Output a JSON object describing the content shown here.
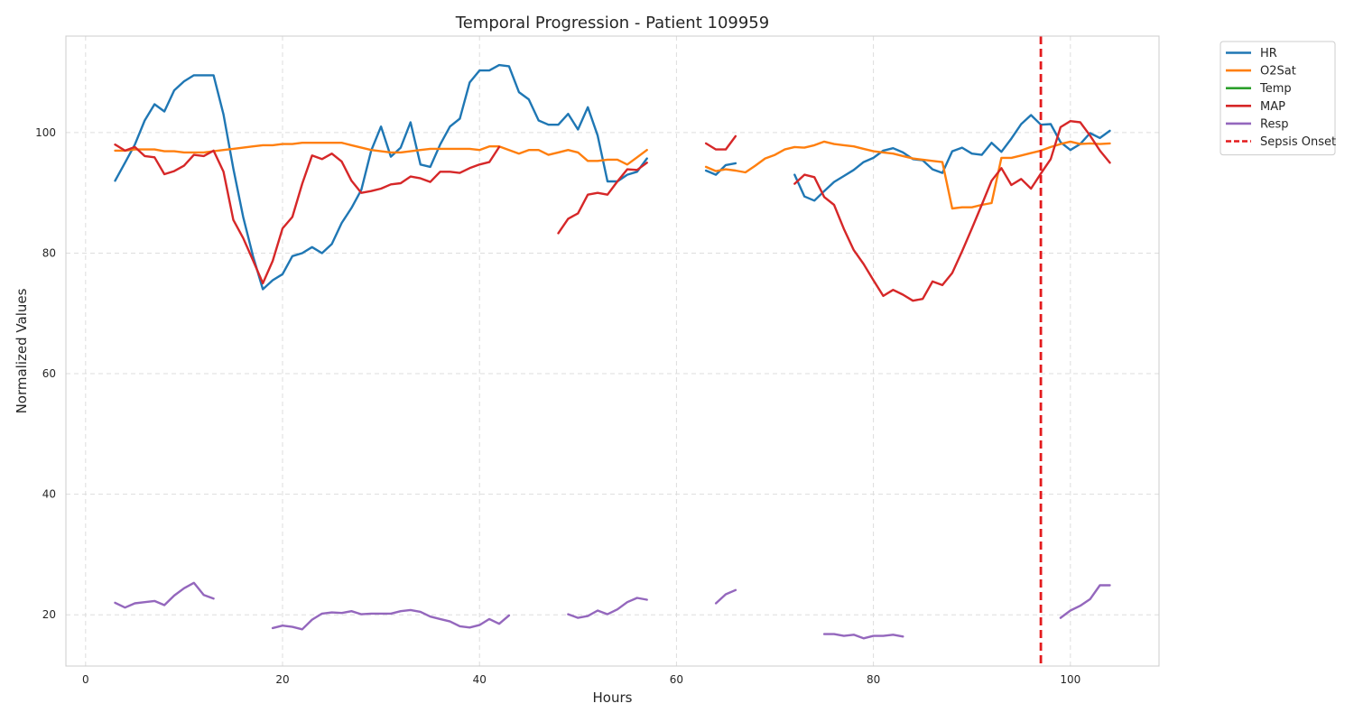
{
  "chart_data": {
    "type": "line",
    "title": "Temporal Progression - Patient 109959",
    "xlabel": "Hours",
    "ylabel": "Normalized Values",
    "xlim": [
      -2,
      109
    ],
    "ylim": [
      11.5,
      116
    ],
    "xticks": [
      0,
      20,
      40,
      60,
      80,
      100
    ],
    "yticks": [
      20,
      40,
      60,
      80,
      100
    ],
    "grid": true,
    "legend_position": "outside-top-right",
    "series": [
      {
        "name": "HR",
        "color": "#1f77b4",
        "x": [
          3,
          4,
          5,
          6,
          7,
          8,
          9,
          10,
          11,
          12,
          13,
          14,
          15,
          16,
          17,
          18,
          19,
          20,
          21,
          22,
          23,
          24,
          25,
          26,
          27,
          28,
          29,
          30,
          31,
          32,
          33,
          34,
          35,
          36,
          37,
          38,
          39,
          40,
          41,
          42,
          43,
          44,
          45,
          46,
          47,
          48,
          49,
          50,
          51,
          52,
          53,
          54,
          55,
          56,
          57,
          58,
          59,
          60,
          61,
          62,
          63,
          64,
          65,
          66,
          67,
          68,
          69,
          70,
          71,
          72,
          73,
          74,
          75,
          76,
          77,
          78,
          79,
          80,
          81,
          82,
          83,
          84,
          85,
          86,
          87,
          88,
          89,
          90,
          91,
          92,
          93,
          94,
          95,
          96,
          97,
          98,
          99,
          100,
          101,
          102,
          103,
          104
        ],
        "y": [
          92,
          95,
          98,
          102,
          104.7,
          103.5,
          107,
          108.5,
          109.5,
          109.5,
          109.5,
          103,
          94,
          86,
          79.5,
          74,
          75.5,
          76.5,
          79.5,
          80,
          81,
          80,
          81.5,
          85,
          87.5,
          90.5,
          97,
          101,
          96,
          97.5,
          101.7,
          94.7,
          94.3,
          98,
          101,
          102.3,
          108.3,
          110.3,
          110.3,
          111.2,
          111,
          106.7,
          105.5,
          102,
          101.3,
          101.3,
          103.1,
          100.5,
          104.2,
          99.5,
          91.9,
          91.9,
          93,
          93.5,
          95.7,
          null,
          null,
          null,
          null,
          null,
          93.7,
          93,
          94.6,
          94.9,
          null,
          null,
          null,
          null,
          null,
          93,
          89.4,
          88.7,
          90.3,
          91.8,
          92.8,
          93.8,
          95.1,
          95.8,
          97,
          97.4,
          96.7,
          95.6,
          95.4,
          93.9,
          93.3,
          96.9,
          97.5,
          96.5,
          96.3,
          98.3,
          96.8,
          99,
          101.4,
          102.9,
          101.3,
          101.4,
          98.4,
          97.1,
          98.1,
          99.9,
          99.1,
          100.3
        ]
      },
      {
        "name": "O2Sat",
        "color": "#ff7f0e",
        "x": [
          3,
          4,
          5,
          6,
          7,
          8,
          9,
          10,
          11,
          12,
          13,
          14,
          15,
          16,
          17,
          18,
          19,
          20,
          21,
          22,
          23,
          24,
          25,
          26,
          27,
          28,
          29,
          30,
          31,
          32,
          33,
          34,
          35,
          36,
          37,
          38,
          39,
          40,
          41,
          42,
          43,
          44,
          45,
          46,
          47,
          48,
          49,
          50,
          51,
          52,
          53,
          54,
          55,
          56,
          57,
          58,
          59,
          60,
          61,
          62,
          63,
          64,
          65,
          66,
          67,
          68,
          69,
          70,
          71,
          72,
          73,
          74,
          75,
          76,
          77,
          78,
          79,
          80,
          81,
          82,
          83,
          84,
          85,
          86,
          87,
          88,
          89,
          90,
          91,
          92,
          93,
          94,
          95,
          96,
          97,
          98,
          99,
          100,
          101,
          102,
          103,
          104
        ],
        "y": [
          97,
          97,
          97.2,
          97.2,
          97.2,
          96.9,
          96.9,
          96.7,
          96.7,
          96.7,
          96.9,
          97.1,
          97.3,
          97.5,
          97.7,
          97.9,
          97.9,
          98.1,
          98.1,
          98.3,
          98.3,
          98.3,
          98.3,
          98.3,
          97.9,
          97.5,
          97.1,
          96.9,
          96.7,
          96.7,
          96.9,
          97.1,
          97.3,
          97.3,
          97.3,
          97.3,
          97.3,
          97.1,
          97.7,
          97.7,
          97.1,
          96.5,
          97.1,
          97.1,
          96.3,
          96.7,
          97.1,
          96.7,
          95.3,
          95.3,
          95.5,
          95.5,
          94.7,
          95.9,
          97.1,
          null,
          null,
          null,
          null,
          null,
          94.3,
          93.6,
          93.9,
          93.7,
          93.4,
          94.5,
          95.7,
          96.3,
          97.2,
          97.6,
          97.5,
          97.9,
          98.5,
          98.1,
          97.9,
          97.7,
          97.3,
          96.9,
          96.7,
          96.5,
          96.1,
          95.7,
          95.5,
          95.3,
          95.1,
          87.4,
          87.6,
          87.6,
          88,
          88.3,
          95.8,
          95.8,
          96.2,
          96.6,
          97,
          97.6,
          98.1,
          98.5,
          98.1,
          98.2,
          98.1,
          98.2
        ]
      },
      {
        "name": "Temp",
        "color": "#2ca02c",
        "x": [],
        "y": []
      },
      {
        "name": "MAP",
        "color": "#d62728",
        "x": [
          3,
          4,
          5,
          6,
          7,
          8,
          9,
          10,
          11,
          12,
          13,
          14,
          15,
          16,
          17,
          18,
          19,
          20,
          21,
          22,
          23,
          24,
          25,
          26,
          27,
          28,
          29,
          30,
          31,
          32,
          33,
          34,
          35,
          36,
          37,
          38,
          39,
          40,
          41,
          42,
          43,
          44,
          45,
          46,
          47,
          48,
          49,
          50,
          51,
          52,
          53,
          54,
          55,
          56,
          57,
          58,
          59,
          60,
          61,
          62,
          63,
          64,
          65,
          66,
          67,
          68,
          69,
          70,
          71,
          72,
          73,
          74,
          75,
          76,
          77,
          78,
          79,
          80,
          81,
          82,
          83,
          84,
          85,
          86,
          87,
          88,
          89,
          90,
          91,
          92,
          93,
          94,
          95,
          96,
          97,
          98,
          99,
          100,
          101,
          102,
          103,
          104
        ],
        "y": [
          98,
          97,
          97.6,
          96.1,
          95.9,
          93.1,
          93.6,
          94.5,
          96.3,
          96.1,
          97,
          93.5,
          85.5,
          82.5,
          78.8,
          75,
          78.7,
          84.1,
          86,
          91.5,
          96.2,
          95.6,
          96.5,
          95.2,
          92,
          90,
          90.3,
          90.7,
          91.4,
          91.6,
          92.7,
          92.4,
          91.8,
          93.5,
          93.5,
          93.3,
          94.1,
          94.7,
          95.1,
          97.6,
          null,
          null,
          null,
          null,
          null,
          83.3,
          85.7,
          86.6,
          89.7,
          90,
          89.7,
          91.9,
          93.9,
          93.8,
          95,
          null,
          null,
          null,
          null,
          null,
          98.2,
          97.2,
          97.2,
          99.4,
          null,
          null,
          null,
          null,
          null,
          91.5,
          93,
          92.6,
          89.3,
          88,
          84,
          80.5,
          78.2,
          75.5,
          72.9,
          73.9,
          73.1,
          72.1,
          72.4,
          75.3,
          74.7,
          76.7,
          80.3,
          84.1,
          88,
          92,
          94.1,
          91.3,
          92.3,
          90.7,
          93.2,
          95.6,
          100.9,
          101.9,
          101.7,
          99.5,
          97,
          95
        ]
      },
      {
        "name": "Resp",
        "color": "#9467bd",
        "x": [
          3,
          4,
          5,
          6,
          7,
          8,
          9,
          10,
          11,
          12,
          13,
          14,
          15,
          16,
          17,
          18,
          19,
          20,
          21,
          22,
          23,
          24,
          25,
          26,
          27,
          28,
          29,
          30,
          31,
          32,
          33,
          34,
          35,
          36,
          37,
          38,
          39,
          40,
          41,
          42,
          43,
          44,
          45,
          46,
          47,
          48,
          49,
          50,
          51,
          52,
          53,
          54,
          55,
          56,
          57,
          58,
          59,
          60,
          61,
          62,
          63,
          64,
          65,
          66,
          67,
          68,
          69,
          70,
          71,
          72,
          73,
          74,
          75,
          76,
          77,
          78,
          79,
          80,
          81,
          82,
          83,
          84,
          85,
          86,
          87,
          88,
          89,
          90,
          91,
          92,
          93,
          94,
          95,
          96,
          97,
          98,
          99,
          100,
          101,
          102,
          103,
          104
        ],
        "y": [
          22,
          21.2,
          21.9,
          22.1,
          22.3,
          21.6,
          23.2,
          24.4,
          25.3,
          23.3,
          22.7,
          null,
          null,
          null,
          null,
          null,
          17.8,
          18.2,
          18,
          17.6,
          19.2,
          20.2,
          20.4,
          20.3,
          20.6,
          20.1,
          20.2,
          20.2,
          20.2,
          20.6,
          20.8,
          20.5,
          19.7,
          19.3,
          18.9,
          18.1,
          17.9,
          18.3,
          19.3,
          18.5,
          19.9,
          null,
          null,
          null,
          null,
          null,
          20.1,
          19.5,
          19.8,
          20.7,
          20.1,
          20.9,
          22.1,
          22.8,
          22.5,
          null,
          null,
          null,
          null,
          null,
          null,
          21.9,
          23.4,
          24.1,
          null,
          null,
          null,
          null,
          null,
          null,
          null,
          null,
          16.8,
          16.8,
          16.5,
          16.7,
          16.1,
          16.5,
          16.5,
          16.7,
          16.4,
          null,
          null,
          null,
          null,
          null,
          null,
          null,
          null,
          null,
          null,
          null,
          null,
          null,
          null,
          null,
          19.5,
          20.7,
          21.5,
          22.6,
          24.9,
          24.9
        ]
      }
    ],
    "annotations": [
      {
        "type": "vline",
        "x": 97,
        "name": "Sepsis Onset",
        "color": "#e31a1c",
        "style": "dashed"
      }
    ]
  }
}
